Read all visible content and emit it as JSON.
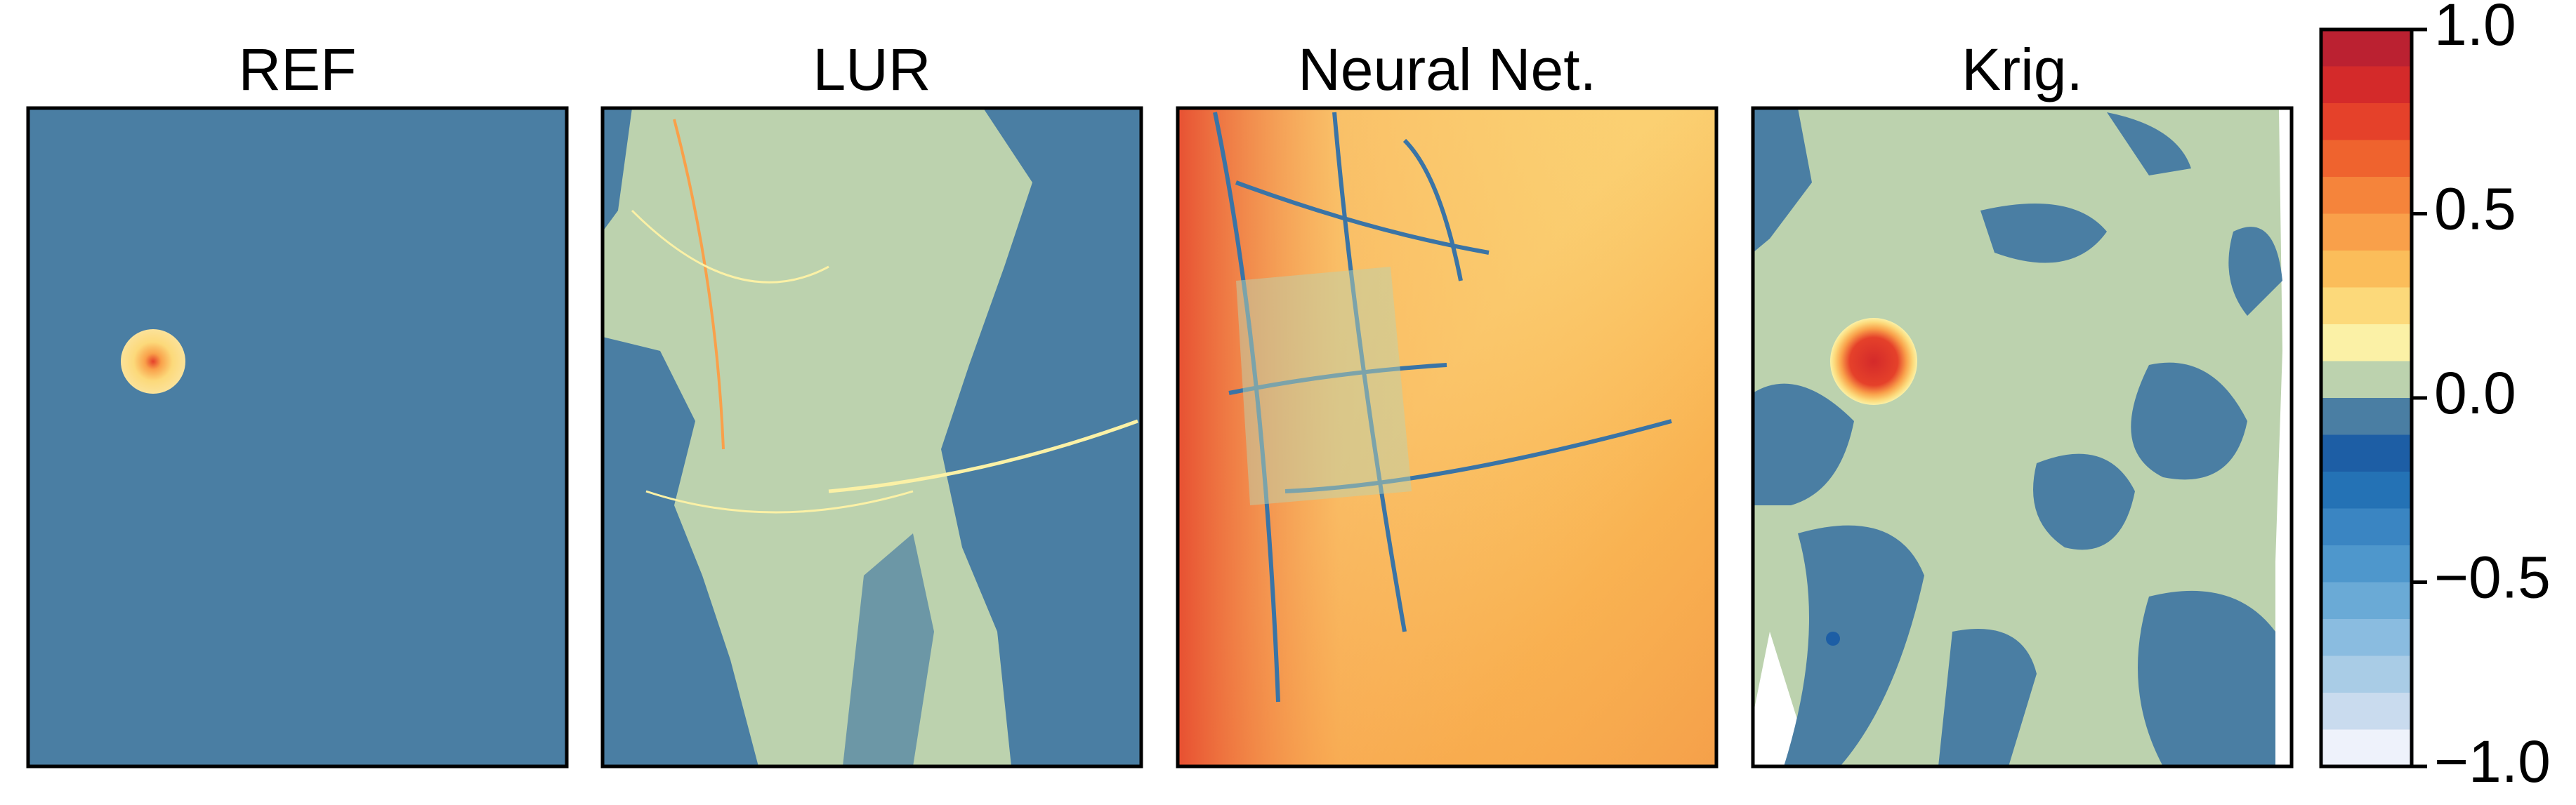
{
  "chart_data": {
    "type": "heatmap",
    "panels": [
      "REF",
      "LUR",
      "Neural Net.",
      "Krig."
    ],
    "colorbar": {
      "bins": [
        -1,
        -0.9,
        -0.8,
        -0.7,
        -0.6,
        -0.5,
        -0.4,
        -0.3,
        -0.2,
        -0.1,
        0,
        0.1,
        0.2,
        0.3,
        0.4,
        0.5,
        0.6,
        0.7,
        0.8,
        0.9,
        1
      ],
      "colors": [
        "#eef2fb",
        "#c9dbee",
        "#a9cce6",
        "#8abce0",
        "#6aaad6",
        "#4e97cc",
        "#3a85c2",
        "#2472b5",
        "#1d5ea5",
        "#4a7ea3",
        "#bcd2ae",
        "#fbf1a6",
        "#fcd97a",
        "#fbbd5a",
        "#f9a04a",
        "#f5843b",
        "#ef632e",
        "#e5412a",
        "#d42a2a",
        "#bb2131"
      ],
      "ylim": [
        -1,
        1
      ],
      "yticks": [
        {
          "value": 1,
          "label": "1.0"
        },
        {
          "value": 0.5,
          "label": "0.5"
        },
        {
          "value": 0,
          "label": "0.0"
        },
        {
          "value": -0.5,
          "label": "−0.5"
        },
        {
          "value": -1,
          "label": "−1.0"
        }
      ]
    }
  }
}
